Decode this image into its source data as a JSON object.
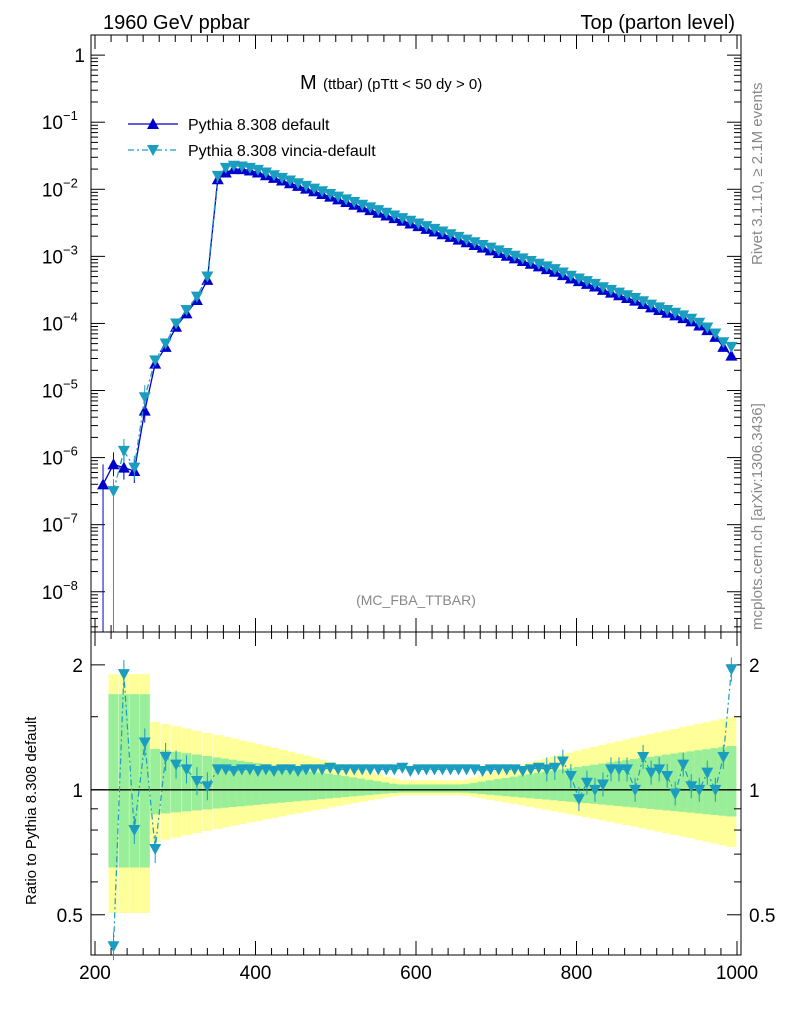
{
  "header": {
    "left": "1960 GeV ppbar",
    "right": "Top (parton level)"
  },
  "plot_title": {
    "main": "M",
    "sub": "(ttbar) (pTtt < 50 dy > 0)"
  },
  "side_labels": {
    "rivet": "Rivet 3.1.10, ≥ 2.1M events",
    "mcplots": "mcplots.cern.ch [arXiv:1306.3436]"
  },
  "analysis_tag": "(MC_FBA_TTBAR)",
  "colors": {
    "default": "#0000cc",
    "vincia": "#1a9dbf",
    "band_inner": "#99ee99",
    "band_outer": "#ffff99"
  },
  "chart_data": [
    {
      "type": "line",
      "log_y": true,
      "xlim": [
        195,
        1005
      ],
      "ylim_exp": [
        -8.6,
        0.3
      ],
      "y_ticks": [
        {
          "label": "1",
          "exp": 0,
          "value": 1
        },
        {
          "label": "10^-1",
          "base": "10",
          "sup": "−1",
          "exp": -1
        },
        {
          "label": "10^-2",
          "base": "10",
          "sup": "−2",
          "exp": -2
        },
        {
          "label": "10^-3",
          "base": "10",
          "sup": "−3",
          "exp": -3
        },
        {
          "label": "10^-4",
          "base": "10",
          "sup": "−4",
          "exp": -4
        },
        {
          "label": "10^-5",
          "base": "10",
          "sup": "−5",
          "exp": -5
        },
        {
          "label": "10^-6",
          "base": "10",
          "sup": "−6",
          "exp": -6
        },
        {
          "label": "10^-7",
          "base": "10",
          "sup": "−7",
          "exp": -7
        },
        {
          "label": "10^-8",
          "base": "10",
          "sup": "−8",
          "exp": -8
        }
      ],
      "legend": [
        {
          "name": "Pythia 8.308 default",
          "marker": "triangle-up"
        },
        {
          "name": "Pythia 8.308 vincia-default",
          "marker": "triangle-down"
        }
      ],
      "x": [
        210,
        223,
        236,
        249,
        262,
        275,
        288,
        301,
        314,
        327,
        340,
        353,
        363,
        373,
        383,
        393,
        403,
        413,
        423,
        433,
        443,
        453,
        463,
        473,
        483,
        493,
        503,
        513,
        523,
        533,
        543,
        553,
        563,
        573,
        583,
        593,
        603,
        613,
        623,
        633,
        643,
        653,
        663,
        673,
        683,
        693,
        703,
        713,
        723,
        733,
        743,
        753,
        763,
        773,
        783,
        793,
        803,
        813,
        823,
        833,
        843,
        853,
        863,
        873,
        883,
        893,
        903,
        913,
        923,
        933,
        943,
        953,
        963,
        973,
        983,
        993
      ],
      "series": [
        {
          "name": "Pythia 8.308 default",
          "values_exp": [
            -6.4,
            -6.1,
            -6.15,
            -6.2,
            -5.3,
            -4.6,
            -4.35,
            -4.05,
            -3.85,
            -3.65,
            -3.35,
            -1.85,
            -1.75,
            -1.7,
            -1.7,
            -1.72,
            -1.75,
            -1.79,
            -1.83,
            -1.87,
            -1.91,
            -1.95,
            -1.99,
            -2.03,
            -2.07,
            -2.11,
            -2.15,
            -2.19,
            -2.23,
            -2.27,
            -2.31,
            -2.35,
            -2.39,
            -2.43,
            -2.47,
            -2.51,
            -2.55,
            -2.59,
            -2.63,
            -2.67,
            -2.71,
            -2.75,
            -2.79,
            -2.83,
            -2.87,
            -2.91,
            -2.95,
            -2.99,
            -3.03,
            -3.07,
            -3.11,
            -3.15,
            -3.19,
            -3.23,
            -3.28,
            -3.33,
            -3.37,
            -3.41,
            -3.45,
            -3.5,
            -3.54,
            -3.58,
            -3.62,
            -3.66,
            -3.71,
            -3.76,
            -3.8,
            -3.84,
            -3.88,
            -3.92,
            -3.97,
            -4.03,
            -4.1,
            -4.2,
            -4.35,
            -4.48
          ]
        },
        {
          "name": "Pythia 8.308 vincia-default",
          "values_exp": [
            null,
            -6.5,
            -5.9,
            -6.15,
            -5.1,
            -4.55,
            -4.3,
            -4.0,
            -3.8,
            -3.6,
            -3.3,
            -1.8,
            -1.68,
            -1.65,
            -1.66,
            -1.68,
            -1.71,
            -1.75,
            -1.79,
            -1.83,
            -1.87,
            -1.91,
            -1.95,
            -1.99,
            -2.03,
            -2.07,
            -2.11,
            -2.15,
            -2.19,
            -2.23,
            -2.27,
            -2.31,
            -2.35,
            -2.39,
            -2.43,
            -2.47,
            -2.51,
            -2.55,
            -2.59,
            -2.63,
            -2.67,
            -2.71,
            -2.75,
            -2.79,
            -2.83,
            -2.87,
            -2.91,
            -2.95,
            -2.99,
            -3.03,
            -3.07,
            -3.11,
            -3.15,
            -3.19,
            -3.24,
            -3.29,
            -3.33,
            -3.37,
            -3.41,
            -3.46,
            -3.5,
            -3.54,
            -3.58,
            -3.62,
            -3.67,
            -3.72,
            -3.76,
            -3.8,
            -3.84,
            -3.88,
            -3.93,
            -3.99,
            -4.06,
            -4.15,
            -4.28,
            -4.35
          ]
        }
      ]
    },
    {
      "type": "line",
      "ylabel": "Ratio to Pythia 8.308 default",
      "log_y": true,
      "xlim": [
        195,
        1005
      ],
      "ylim": [
        0.4,
        2.4
      ],
      "x_ticks": [
        200,
        400,
        600,
        800,
        1000
      ],
      "y_ticks": [
        0.5,
        1,
        2
      ],
      "reference": 1,
      "x": [
        223,
        236,
        249,
        262,
        275,
        288,
        301,
        314,
        327,
        340,
        353,
        363,
        373,
        383,
        393,
        403,
        413,
        423,
        433,
        443,
        453,
        463,
        473,
        483,
        493,
        503,
        513,
        523,
        533,
        543,
        553,
        563,
        573,
        583,
        593,
        603,
        613,
        623,
        633,
        643,
        653,
        663,
        673,
        683,
        693,
        703,
        713,
        723,
        733,
        743,
        753,
        763,
        773,
        783,
        793,
        803,
        813,
        823,
        833,
        843,
        853,
        863,
        873,
        883,
        893,
        903,
        913,
        923,
        933,
        943,
        953,
        963,
        973,
        983,
        993
      ],
      "series": [
        {
          "name": "Pythia 8.308 vincia-default",
          "values": [
            0.42,
            1.9,
            0.8,
            1.3,
            0.72,
            1.2,
            1.15,
            1.12,
            1.05,
            1.02,
            1.12,
            1.12,
            1.11,
            1.12,
            1.12,
            1.11,
            1.12,
            1.11,
            1.12,
            1.12,
            1.11,
            1.12,
            1.12,
            1.12,
            1.13,
            1.12,
            1.12,
            1.12,
            1.12,
            1.12,
            1.12,
            1.12,
            1.12,
            1.13,
            1.11,
            1.12,
            1.12,
            1.12,
            1.12,
            1.12,
            1.12,
            1.12,
            1.12,
            1.11,
            1.12,
            1.12,
            1.12,
            1.12,
            1.11,
            1.12,
            1.13,
            1.12,
            1.13,
            1.17,
            1.08,
            0.95,
            1.04,
            1.0,
            1.03,
            1.12,
            1.12,
            1.12,
            1.0,
            1.2,
            1.1,
            1.12,
            1.08,
            0.98,
            1.15,
            1.02,
            1.0,
            1.1,
            1.0,
            1.2,
            1.95
          ]
        }
      ]
    }
  ]
}
